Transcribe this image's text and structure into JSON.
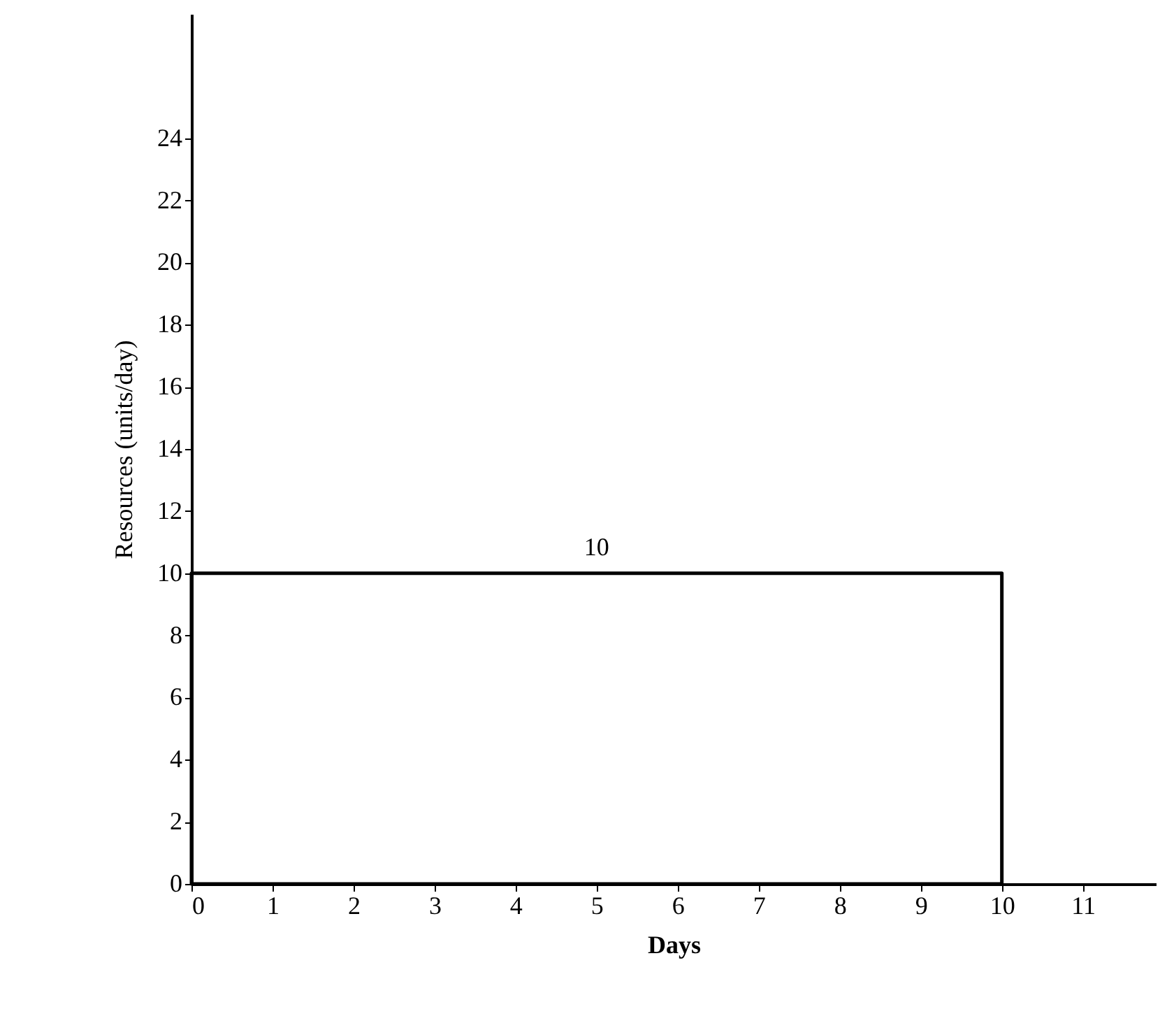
{
  "chart_data": {
    "type": "histogram",
    "xlabel": "Days",
    "ylabel": "Resources (units/day)",
    "bins": [
      0,
      10
    ],
    "values": [
      10
    ],
    "color": "#000000",
    "xlim": [
      0,
      11.9
    ],
    "xticks": [
      0,
      1,
      2,
      3,
      4,
      5,
      6,
      7,
      8,
      9,
      10,
      11
    ],
    "ylim": [
      0,
      28
    ],
    "yticks": [
      0,
      2,
      4,
      6,
      8,
      10,
      12,
      14,
      16,
      18,
      20,
      22,
      24
    ],
    "annotations": [
      {
        "text": "10",
        "x": 5,
        "y": 10
      }
    ],
    "grid": false
  }
}
